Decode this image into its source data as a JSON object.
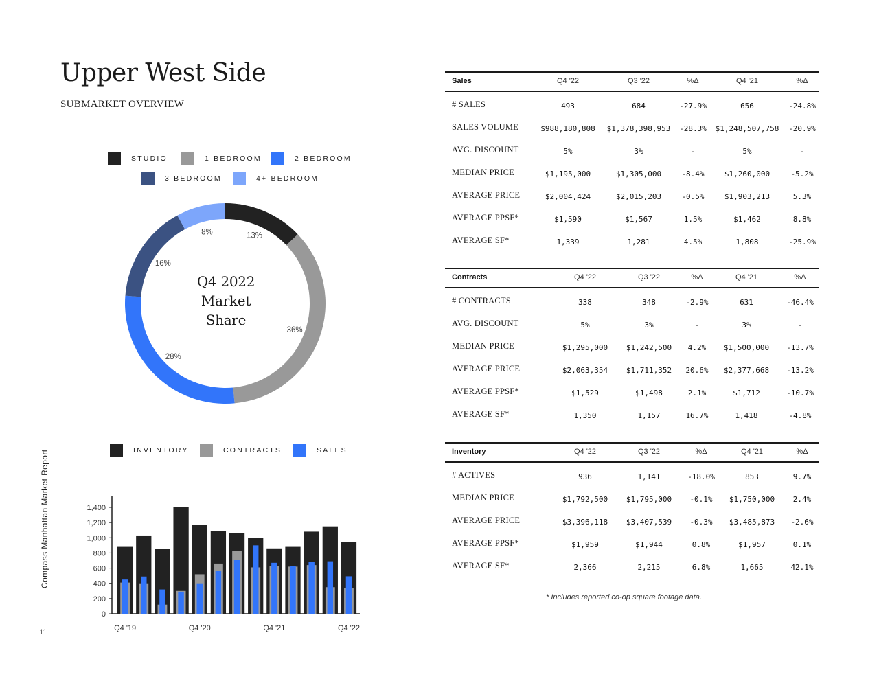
{
  "page": {
    "title": "Upper West Side",
    "subtitle": "SUBMARKET OVERVIEW",
    "side_label": "Compass    Manhattan Market Report",
    "page_number": "11",
    "footnote": "* Includes reported co-op square footage data."
  },
  "colors": {
    "studio": "#222222",
    "one_bedroom": "#999999",
    "two_bedroom": "#3275fa",
    "three_bedroom": "#3b5282",
    "four_plus_bedroom": "#7da6fb",
    "inventory": "#222222",
    "contracts": "#999999",
    "sales": "#3275fa"
  },
  "donut": {
    "legend": [
      {
        "label": "STUDIO",
        "color": "#222222"
      },
      {
        "label": "1 BEDROOM",
        "color": "#999999"
      },
      {
        "label": "2 BEDROOM",
        "color": "#3275fa"
      },
      {
        "label": "3 BEDROOM",
        "color": "#3b5282"
      },
      {
        "label": "4+ BEDROOM",
        "color": "#7da6fb"
      }
    ],
    "center_lines": [
      "Q4 2022",
      "Market",
      "Share"
    ]
  },
  "bar_legend": [
    {
      "label": "INVENTORY",
      "color": "#222222"
    },
    {
      "label": "CONTRACTS",
      "color": "#999999"
    },
    {
      "label": "SALES",
      "color": "#3275fa"
    }
  ],
  "chart_data": [
    {
      "type": "pie",
      "title": "Q4 2022 Market Share",
      "categories": [
        "STUDIO",
        "1 BEDROOM",
        "2 BEDROOM",
        "3 BEDROOM",
        "4+ BEDROOM"
      ],
      "values": [
        13,
        36,
        28,
        16,
        8
      ],
      "labels": [
        "13%",
        "36%",
        "28%",
        "16%",
        "8%"
      ],
      "colors": [
        "#222222",
        "#999999",
        "#3275fa",
        "#3b5282",
        "#7da6fb"
      ]
    },
    {
      "type": "bar",
      "categories": [
        "Q4 '19",
        "Q1 '20",
        "Q2 '20",
        "Q3 '20",
        "Q4 '20",
        "Q1 '21",
        "Q2 '21",
        "Q3 '21",
        "Q4 '21",
        "Q1 '22",
        "Q2 '22",
        "Q3 '22",
        "Q4 '22"
      ],
      "x_tick_labels": [
        "Q4 '19",
        "Q4 '20",
        "Q4 '21",
        "Q4 '22"
      ],
      "x_tick_indices": [
        0,
        4,
        8,
        12
      ],
      "y_ticks": [
        "0",
        "200",
        "400",
        "600",
        "800",
        "1,000",
        "1,200",
        "1,400"
      ],
      "ylim": [
        0,
        1500
      ],
      "series": [
        {
          "name": "INVENTORY",
          "color": "#222222",
          "values": [
            880,
            1030,
            850,
            1400,
            1170,
            1090,
            1060,
            1000,
            860,
            880,
            1080,
            1150,
            940
          ]
        },
        {
          "name": "CONTRACTS",
          "color": "#999999",
          "values": [
            410,
            400,
            120,
            300,
            520,
            660,
            830,
            610,
            630,
            620,
            640,
            350,
            340
          ]
        },
        {
          "name": "SALES",
          "color": "#3275fa",
          "values": [
            450,
            490,
            320,
            290,
            400,
            560,
            710,
            900,
            670,
            630,
            680,
            690,
            493
          ]
        }
      ]
    }
  ],
  "tables": {
    "sales": {
      "header": [
        "Sales",
        "Q4 '22",
        "Q3 '22",
        "%Δ",
        "Q4 '21",
        "%Δ"
      ],
      "rows": [
        [
          "# SALES",
          "493",
          "684",
          "-27.9%",
          "656",
          "-24.8%"
        ],
        [
          "SALES VOLUME",
          "$988,180,808",
          "$1,378,398,953",
          "-28.3%",
          "$1,248,507,758",
          "-20.9%"
        ],
        [
          "AVG. DISCOUNT",
          "5%",
          "3%",
          "-",
          "5%",
          "-"
        ],
        [
          "MEDIAN PRICE",
          "$1,195,000",
          "$1,305,000",
          "-8.4%",
          "$1,260,000",
          "-5.2%"
        ],
        [
          "AVERAGE PRICE",
          "$2,004,424",
          "$2,015,203",
          "-0.5%",
          "$1,903,213",
          "5.3%"
        ],
        [
          "AVERAGE PPSF*",
          "$1,590",
          "$1,567",
          "1.5%",
          "$1,462",
          "8.8%"
        ],
        [
          "AVERAGE SF*",
          "1,339",
          "1,281",
          "4.5%",
          "1,808",
          "-25.9%"
        ]
      ]
    },
    "contracts": {
      "header": [
        "Contracts",
        "Q4 '22",
        "Q3 '22",
        "%Δ",
        "Q4 '21",
        "%Δ"
      ],
      "rows": [
        [
          "# CONTRACTS",
          "338",
          "348",
          "-2.9%",
          "631",
          "-46.4%"
        ],
        [
          "AVG. DISCOUNT",
          "5%",
          "3%",
          "-",
          "3%",
          "-"
        ],
        [
          "MEDIAN PRICE",
          "$1,295,000",
          "$1,242,500",
          "4.2%",
          "$1,500,000",
          "-13.7%"
        ],
        [
          "AVERAGE PRICE",
          "$2,063,354",
          "$1,711,352",
          "20.6%",
          "$2,377,668",
          "-13.2%"
        ],
        [
          "AVERAGE PPSF*",
          "$1,529",
          "$1,498",
          "2.1%",
          "$1,712",
          "-10.7%"
        ],
        [
          "AVERAGE SF*",
          "1,350",
          "1,157",
          "16.7%",
          "1,418",
          "-4.8%"
        ]
      ]
    },
    "inventory": {
      "header": [
        "Inventory",
        "Q4 '22",
        "Q3 '22",
        "%Δ",
        "Q4 '21",
        "%Δ"
      ],
      "rows": [
        [
          "# ACTIVES",
          "936",
          "1,141",
          "-18.0%",
          "853",
          "9.7%"
        ],
        [
          "MEDIAN PRICE",
          "$1,792,500",
          "$1,795,000",
          "-0.1%",
          "$1,750,000",
          "2.4%"
        ],
        [
          "AVERAGE PRICE",
          "$3,396,118",
          "$3,407,539",
          "-0.3%",
          "$3,485,873",
          "-2.6%"
        ],
        [
          "AVERAGE PPSF*",
          "$1,959",
          "$1,944",
          "0.8%",
          "$1,957",
          "0.1%"
        ],
        [
          "AVERAGE SF*",
          "2,366",
          "2,215",
          "6.8%",
          "1,665",
          "42.1%"
        ]
      ]
    }
  }
}
